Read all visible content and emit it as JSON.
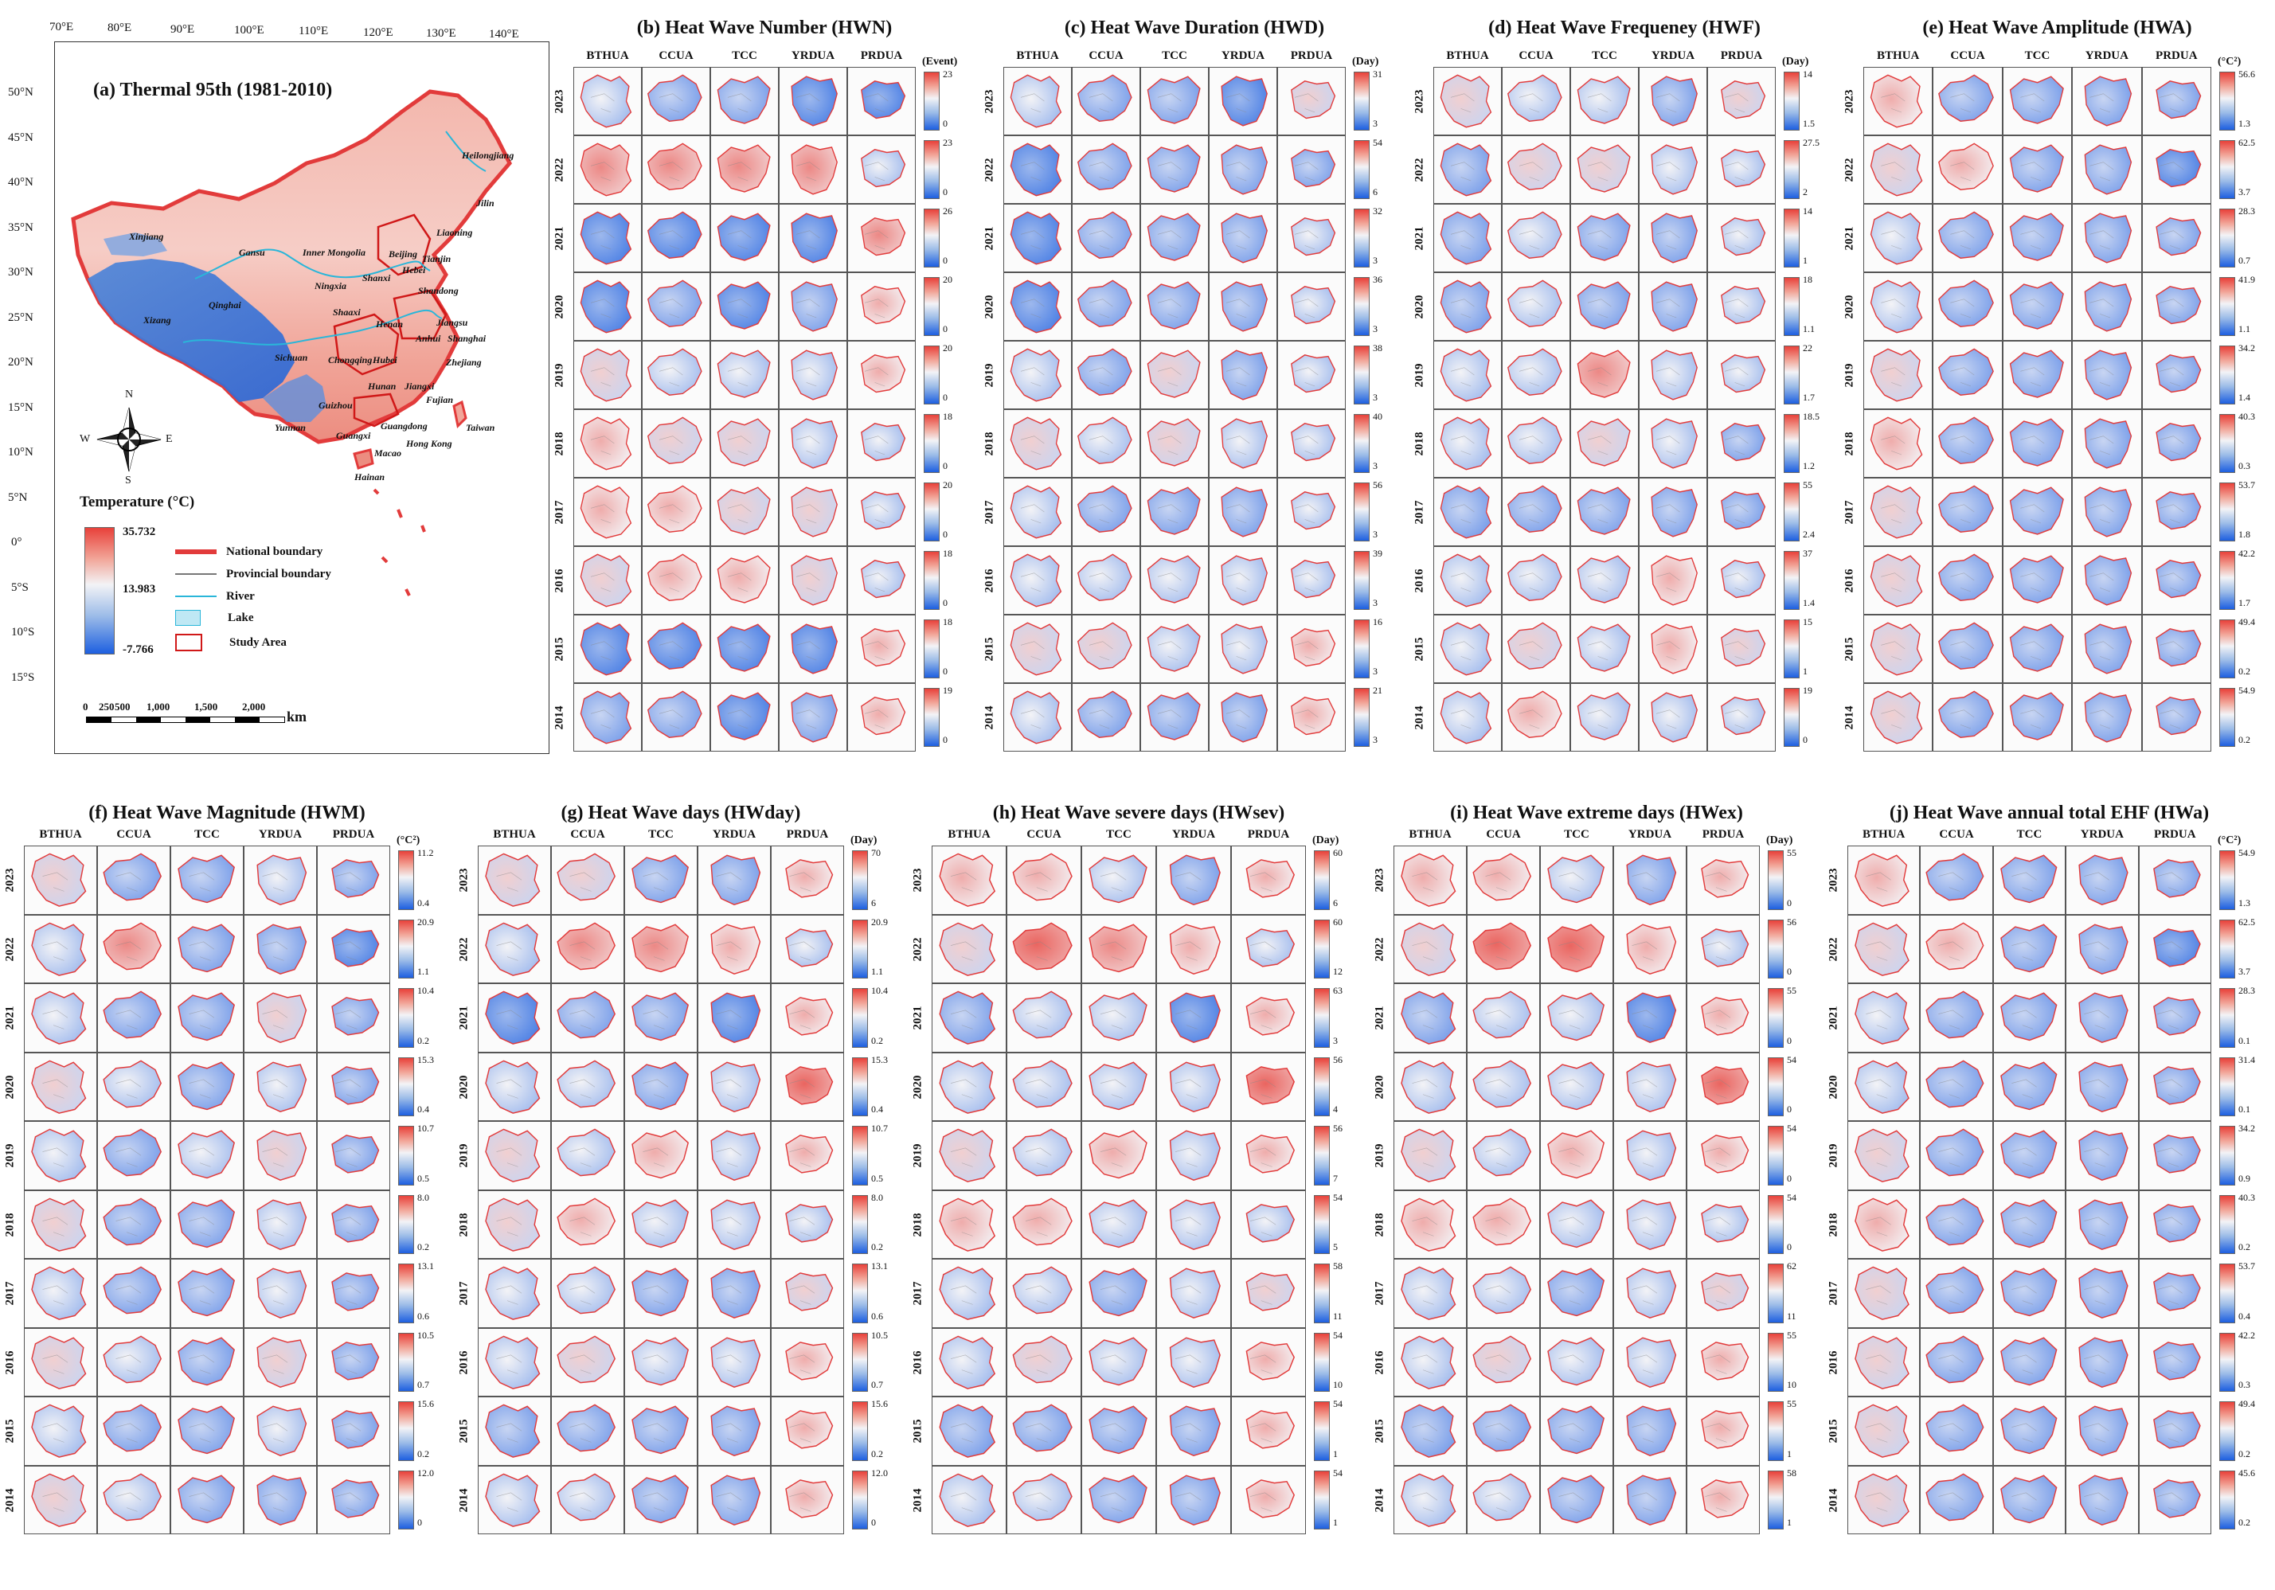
{
  "colors": {
    "hot": "#e8413a",
    "mid": "#f3f3f6",
    "cold": "#1d5fe0",
    "boundary": "#e23b3b",
    "river": "#2ab6d9",
    "lake": "#bfe8f4"
  },
  "cities": [
    "BTHUA",
    "CCUA",
    "TCC",
    "YRDUA",
    "PRDUA"
  ],
  "years": [
    "2023",
    "2022",
    "2021",
    "2020",
    "2019",
    "2018",
    "2017",
    "2016",
    "2015",
    "2014"
  ],
  "map": {
    "title": "(a) Thermal 95th (1981-2010)",
    "lon_labels": [
      "70°E",
      "80°E",
      "90°E",
      "100°E",
      "110°E",
      "120°E",
      "130°E",
      "140°E"
    ],
    "lat_labels": [
      "50°N",
      "45°N",
      "40°N",
      "35°N",
      "30°N",
      "25°N",
      "20°N",
      "15°N",
      "10°N",
      "5°N",
      "0°",
      "5°S",
      "10°S",
      "15°S"
    ],
    "regions": [
      "Heilongjiang",
      "Jilin",
      "Liaoning",
      "Inner Mongolia",
      "Beijing",
      "Tianjin",
      "Hebei",
      "Shanxi",
      "Shandong",
      "Xinjiang",
      "Gansu",
      "Ningxia",
      "Qinghai",
      "Shaaxi",
      "Henan",
      "Jiangsu",
      "Anhui",
      "Shanghai",
      "Xizang",
      "Sichuan",
      "Chongqing",
      "Hubei",
      "Zhejiang",
      "Hunan",
      "Jiangxi",
      "Fujian",
      "Guizhou",
      "Yunnan",
      "Guangxi",
      "Guangdong",
      "Taiwan",
      "Hong Kong",
      "Macao",
      "Hainan"
    ],
    "compass": {
      "n": "N",
      "s": "S",
      "e": "E",
      "w": "W"
    },
    "legend": {
      "title": "Temperature (°C)",
      "max": "35.732",
      "mid": "13.983",
      "min": "-7.766",
      "items": [
        "National boundary",
        "Provincial boundary",
        "River",
        "Lake",
        "Study Area"
      ]
    },
    "scale": {
      "ticks": [
        "0",
        "250",
        "500",
        "1,000",
        "1,500",
        "2,000"
      ],
      "unit": "km"
    }
  },
  "panels": [
    {
      "id": "b",
      "title": "(b) Heat Wave Number (HWN)",
      "unit": "(Event)",
      "ranges": [
        [
          "23",
          "0"
        ],
        [
          "23",
          "0"
        ],
        [
          "26",
          "0"
        ],
        [
          "20",
          "0"
        ],
        [
          "20",
          "0"
        ],
        [
          "18",
          "0"
        ],
        [
          "20",
          "0"
        ],
        [
          "18",
          "0"
        ],
        [
          "18",
          "0"
        ],
        [
          "19",
          "0"
        ]
      ],
      "shade": [
        [
          0.3,
          0.2,
          0.2,
          0.1,
          0.1
        ],
        [
          0.6,
          0.6,
          0.6,
          0.6,
          0.3
        ],
        [
          0.1,
          0.1,
          0.1,
          0.1,
          0.6
        ],
        [
          0.1,
          0.2,
          0.1,
          0.2,
          0.5
        ],
        [
          0.4,
          0.3,
          0.3,
          0.3,
          0.5
        ],
        [
          0.5,
          0.4,
          0.4,
          0.3,
          0.3
        ],
        [
          0.5,
          0.5,
          0.4,
          0.4,
          0.3
        ],
        [
          0.4,
          0.5,
          0.5,
          0.4,
          0.3
        ],
        [
          0.1,
          0.1,
          0.1,
          0.1,
          0.5
        ],
        [
          0.2,
          0.2,
          0.1,
          0.2,
          0.5
        ]
      ]
    },
    {
      "id": "c",
      "title": "(c) Heat Wave Duration (HWD)",
      "unit": "(Day)",
      "ranges": [
        [
          "31",
          "3"
        ],
        [
          "54",
          "6"
        ],
        [
          "32",
          "3"
        ],
        [
          "36",
          "3"
        ],
        [
          "38",
          "3"
        ],
        [
          "40",
          "3"
        ],
        [
          "56",
          "3"
        ],
        [
          "39",
          "3"
        ],
        [
          "16",
          "3"
        ],
        [
          "21",
          "3"
        ]
      ],
      "shade": [
        [
          0.3,
          0.2,
          0.2,
          0.1,
          0.4
        ],
        [
          0.1,
          0.2,
          0.2,
          0.2,
          0.2
        ],
        [
          0.1,
          0.2,
          0.2,
          0.2,
          0.3
        ],
        [
          0.1,
          0.2,
          0.2,
          0.2,
          0.3
        ],
        [
          0.3,
          0.2,
          0.4,
          0.2,
          0.3
        ],
        [
          0.4,
          0.3,
          0.4,
          0.3,
          0.3
        ],
        [
          0.3,
          0.2,
          0.2,
          0.2,
          0.3
        ],
        [
          0.3,
          0.3,
          0.3,
          0.3,
          0.3
        ],
        [
          0.4,
          0.4,
          0.3,
          0.3,
          0.5
        ],
        [
          0.3,
          0.2,
          0.2,
          0.2,
          0.5
        ]
      ]
    },
    {
      "id": "d",
      "title": "(d) Heat Wave Frequeney (HWF)",
      "unit": "(Day)",
      "ranges": [
        [
          "14",
          "1.5"
        ],
        [
          "27.5",
          "2"
        ],
        [
          "14",
          "1"
        ],
        [
          "18",
          "1.1"
        ],
        [
          "22",
          "1.7"
        ],
        [
          "18.5",
          "1.2"
        ],
        [
          "55",
          "2.4"
        ],
        [
          "37",
          "1.4"
        ],
        [
          "15",
          "1"
        ],
        [
          "19",
          "0"
        ]
      ],
      "shade": [
        [
          0.4,
          0.3,
          0.3,
          0.2,
          0.4
        ],
        [
          0.2,
          0.4,
          0.4,
          0.3,
          0.3
        ],
        [
          0.2,
          0.3,
          0.2,
          0.2,
          0.3
        ],
        [
          0.2,
          0.3,
          0.2,
          0.2,
          0.3
        ],
        [
          0.3,
          0.3,
          0.6,
          0.3,
          0.3
        ],
        [
          0.3,
          0.3,
          0.4,
          0.3,
          0.2
        ],
        [
          0.2,
          0.2,
          0.2,
          0.2,
          0.2
        ],
        [
          0.3,
          0.3,
          0.3,
          0.5,
          0.3
        ],
        [
          0.3,
          0.4,
          0.3,
          0.5,
          0.4
        ],
        [
          0.3,
          0.5,
          0.3,
          0.3,
          0.3
        ]
      ]
    },
    {
      "id": "e",
      "title": "(e) Heat Wave Amplitude (HWA)",
      "unit": "(°C²)",
      "ranges": [
        [
          "56.6",
          "1.3"
        ],
        [
          "62.5",
          "3.7"
        ],
        [
          "28.3",
          "0.7"
        ],
        [
          "41.9",
          "1.1"
        ],
        [
          "34.2",
          "1.4"
        ],
        [
          "40.3",
          "0.3"
        ],
        [
          "53.7",
          "1.8"
        ],
        [
          "42.2",
          "1.7"
        ],
        [
          "49.4",
          "0.2"
        ],
        [
          "54.9",
          "0.2"
        ]
      ],
      "shade": [
        [
          0.5,
          0.2,
          0.2,
          0.2,
          0.2
        ],
        [
          0.4,
          0.5,
          0.2,
          0.2,
          0.1
        ],
        [
          0.3,
          0.2,
          0.2,
          0.2,
          0.2
        ],
        [
          0.3,
          0.2,
          0.2,
          0.2,
          0.2
        ],
        [
          0.4,
          0.2,
          0.2,
          0.2,
          0.2
        ],
        [
          0.5,
          0.2,
          0.2,
          0.2,
          0.2
        ],
        [
          0.4,
          0.2,
          0.2,
          0.2,
          0.2
        ],
        [
          0.4,
          0.2,
          0.2,
          0.2,
          0.2
        ],
        [
          0.4,
          0.2,
          0.2,
          0.2,
          0.2
        ],
        [
          0.4,
          0.2,
          0.2,
          0.2,
          0.2
        ]
      ]
    },
    {
      "id": "f",
      "title": "(f) Heat Wave Magnitude (HWM)",
      "unit": "(°C²)",
      "ranges": [
        [
          "11.2",
          "0.4"
        ],
        [
          "20.9",
          "1.1"
        ],
        [
          "10.4",
          "0.2"
        ],
        [
          "15.3",
          "0.4"
        ],
        [
          "10.7",
          "0.5"
        ],
        [
          "8.0",
          "0.2"
        ],
        [
          "13.1",
          "0.6"
        ],
        [
          "10.5",
          "0.7"
        ],
        [
          "15.6",
          "0.2"
        ],
        [
          "12.0",
          "0"
        ]
      ],
      "shade": [
        [
          0.4,
          0.2,
          0.2,
          0.3,
          0.2
        ],
        [
          0.3,
          0.6,
          0.2,
          0.2,
          0.1
        ],
        [
          0.3,
          0.2,
          0.2,
          0.4,
          0.2
        ],
        [
          0.4,
          0.3,
          0.2,
          0.3,
          0.2
        ],
        [
          0.3,
          0.2,
          0.3,
          0.4,
          0.2
        ],
        [
          0.4,
          0.2,
          0.2,
          0.3,
          0.2
        ],
        [
          0.3,
          0.2,
          0.2,
          0.3,
          0.2
        ],
        [
          0.4,
          0.3,
          0.2,
          0.4,
          0.2
        ],
        [
          0.3,
          0.2,
          0.2,
          0.3,
          0.2
        ],
        [
          0.4,
          0.3,
          0.2,
          0.2,
          0.2
        ]
      ]
    },
    {
      "id": "g",
      "title": "(g) Heat Wave days (HWday)",
      "unit": "(Day)",
      "ranges": [
        [
          "70",
          "6"
        ],
        [
          "20.9",
          "1.1"
        ],
        [
          "10.4",
          "0.2"
        ],
        [
          "15.3",
          "0.4"
        ],
        [
          "10.7",
          "0.5"
        ],
        [
          "8.0",
          "0.2"
        ],
        [
          "13.1",
          "0.6"
        ],
        [
          "10.5",
          "0.7"
        ],
        [
          "15.6",
          "0.2"
        ],
        [
          "12.0",
          "0"
        ]
      ],
      "shade": [
        [
          0.4,
          0.4,
          0.2,
          0.2,
          0.5
        ],
        [
          0.3,
          0.6,
          0.6,
          0.5,
          0.3
        ],
        [
          0.1,
          0.2,
          0.2,
          0.1,
          0.5
        ],
        [
          0.3,
          0.3,
          0.2,
          0.3,
          0.7
        ],
        [
          0.4,
          0.3,
          0.5,
          0.3,
          0.5
        ],
        [
          0.4,
          0.5,
          0.3,
          0.3,
          0.3
        ],
        [
          0.3,
          0.3,
          0.2,
          0.2,
          0.4
        ],
        [
          0.3,
          0.4,
          0.3,
          0.3,
          0.5
        ],
        [
          0.2,
          0.2,
          0.2,
          0.2,
          0.5
        ],
        [
          0.3,
          0.3,
          0.2,
          0.2,
          0.5
        ]
      ]
    },
    {
      "id": "h",
      "title": "(h) Heat Wave severe days (HWsev)",
      "unit": "(Day)",
      "ranges": [
        [
          "60",
          "6"
        ],
        [
          "60",
          "12"
        ],
        [
          "63",
          "3"
        ],
        [
          "56",
          "4"
        ],
        [
          "56",
          "7"
        ],
        [
          "54",
          "5"
        ],
        [
          "58",
          "11"
        ],
        [
          "54",
          "10"
        ],
        [
          "54",
          "1"
        ],
        [
          "54",
          "1"
        ]
      ],
      "shade": [
        [
          0.5,
          0.5,
          0.3,
          0.2,
          0.5
        ],
        [
          0.4,
          0.7,
          0.6,
          0.5,
          0.3
        ],
        [
          0.2,
          0.3,
          0.3,
          0.1,
          0.5
        ],
        [
          0.3,
          0.3,
          0.3,
          0.3,
          0.7
        ],
        [
          0.4,
          0.3,
          0.5,
          0.3,
          0.5
        ],
        [
          0.5,
          0.5,
          0.3,
          0.3,
          0.3
        ],
        [
          0.3,
          0.3,
          0.2,
          0.3,
          0.4
        ],
        [
          0.3,
          0.4,
          0.3,
          0.3,
          0.5
        ],
        [
          0.2,
          0.2,
          0.2,
          0.2,
          0.5
        ],
        [
          0.3,
          0.3,
          0.2,
          0.2,
          0.5
        ]
      ]
    },
    {
      "id": "i",
      "title": "(i) Heat Wave extreme days (HWex)",
      "unit": "(Day)",
      "ranges": [
        [
          "55",
          "0"
        ],
        [
          "56",
          "0"
        ],
        [
          "55",
          "0"
        ],
        [
          "54",
          "0"
        ],
        [
          "54",
          "0"
        ],
        [
          "54",
          "0"
        ],
        [
          "62",
          "11"
        ],
        [
          "55",
          "10"
        ],
        [
          "55",
          "1"
        ],
        [
          "58",
          "1"
        ]
      ],
      "shade": [
        [
          0.5,
          0.5,
          0.3,
          0.2,
          0.5
        ],
        [
          0.4,
          0.7,
          0.7,
          0.5,
          0.3
        ],
        [
          0.2,
          0.3,
          0.3,
          0.1,
          0.5
        ],
        [
          0.3,
          0.3,
          0.3,
          0.3,
          0.7
        ],
        [
          0.4,
          0.3,
          0.5,
          0.3,
          0.5
        ],
        [
          0.5,
          0.5,
          0.3,
          0.3,
          0.3
        ],
        [
          0.3,
          0.3,
          0.2,
          0.3,
          0.4
        ],
        [
          0.3,
          0.4,
          0.3,
          0.3,
          0.5
        ],
        [
          0.2,
          0.2,
          0.2,
          0.2,
          0.5
        ],
        [
          0.3,
          0.3,
          0.2,
          0.2,
          0.5
        ]
      ]
    },
    {
      "id": "j",
      "title": "(j) Heat Wave annual total EHF (HWa)",
      "unit": "(°C²)",
      "ranges": [
        [
          "54.9",
          "1.3"
        ],
        [
          "62.5",
          "3.7"
        ],
        [
          "28.3",
          "0.1"
        ],
        [
          "31.4",
          "0.1"
        ],
        [
          "34.2",
          "0.9"
        ],
        [
          "40.3",
          "0.2"
        ],
        [
          "53.7",
          "0.4"
        ],
        [
          "42.2",
          "0.3"
        ],
        [
          "49.4",
          "0.2"
        ],
        [
          "45.6",
          "0.2"
        ]
      ],
      "shade": [
        [
          0.5,
          0.2,
          0.2,
          0.2,
          0.2
        ],
        [
          0.4,
          0.5,
          0.2,
          0.2,
          0.1
        ],
        [
          0.3,
          0.2,
          0.2,
          0.2,
          0.2
        ],
        [
          0.3,
          0.2,
          0.2,
          0.2,
          0.2
        ],
        [
          0.4,
          0.2,
          0.2,
          0.2,
          0.2
        ],
        [
          0.5,
          0.2,
          0.2,
          0.2,
          0.2
        ],
        [
          0.4,
          0.2,
          0.2,
          0.2,
          0.2
        ],
        [
          0.4,
          0.2,
          0.2,
          0.2,
          0.2
        ],
        [
          0.4,
          0.2,
          0.2,
          0.2,
          0.2
        ],
        [
          0.4,
          0.2,
          0.2,
          0.2,
          0.2
        ]
      ]
    }
  ]
}
